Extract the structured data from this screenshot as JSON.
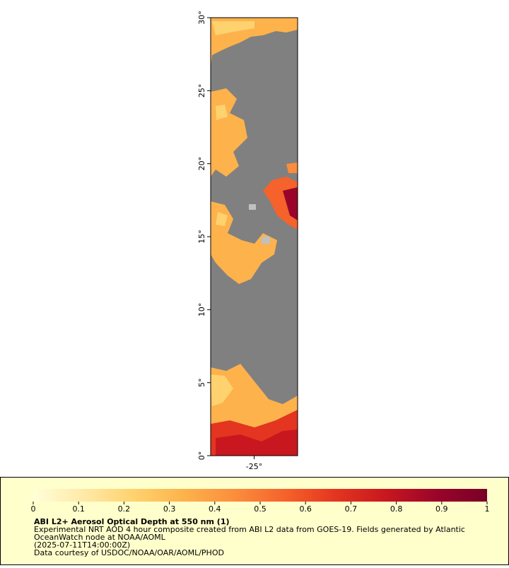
{
  "map": {
    "xlim": [
      -28,
      -22
    ],
    "xticks": [
      {
        "value": -25,
        "label": "-25°"
      }
    ],
    "ylim": [
      0,
      30
    ],
    "yticks": [
      {
        "value": 0,
        "label": "0°"
      },
      {
        "value": 5,
        "label": "5°"
      },
      {
        "value": 10,
        "label": "10°"
      },
      {
        "value": 15,
        "label": "15°"
      },
      {
        "value": 20,
        "label": "20°"
      },
      {
        "value": 25,
        "label": "25°"
      },
      {
        "value": 30,
        "label": "30°"
      }
    ]
  },
  "colorbar": {
    "range": [
      0,
      1
    ],
    "ticks": [
      0,
      0.1,
      0.2,
      0.3,
      0.4,
      0.5,
      0.6,
      0.7,
      0.8,
      0.9,
      1
    ],
    "colors": [
      "#ffffd9",
      "#ffe9a8",
      "#fed26e",
      "#fdb24c",
      "#fc8d3c",
      "#f5622b",
      "#e33520",
      "#c8171f",
      "#99052a",
      "#7a0027"
    ]
  },
  "legend": {
    "title": "ABI L2+ Aerosol Optical Depth at 550 nm (1)",
    "lines": [
      "Experimental NRT AOD 4 hour composite created from ABI L2 data from GOES-19. Fields generated by Atlantic",
      "OceanWatch node at NOAA/AOML",
      "(2025-07-11T14:00:00Z)",
      "Data courtesy of USDOC/NOAA/OAR/AOML/PHOD"
    ]
  }
}
